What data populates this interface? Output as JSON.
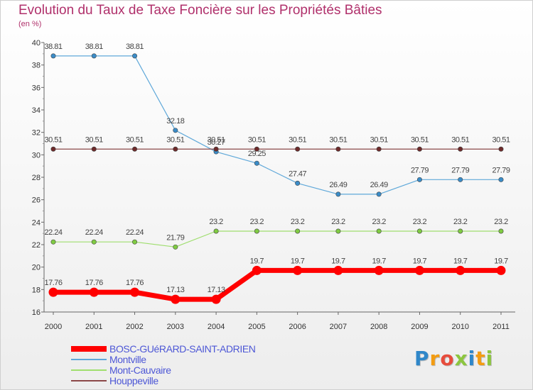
{
  "chart_data": {
    "type": "line",
    "title": "Evolution du Taux de Taxe Foncière sur les Propriétés Bâties",
    "subtitle": "(en %)",
    "xlabel": "",
    "ylabel": "",
    "ylim": [
      16,
      40
    ],
    "yticks": [
      16,
      18,
      20,
      22,
      24,
      26,
      28,
      30,
      32,
      34,
      36,
      38,
      40
    ],
    "x": [
      "2000",
      "2001",
      "2002",
      "2003",
      "2004",
      "2005",
      "2006",
      "2007",
      "2008",
      "2009",
      "2010",
      "2011"
    ],
    "series": [
      {
        "name": "BOSC-GUéRARD-SAINT-ADRIEN",
        "color": "#ff0000",
        "emphasis": true,
        "values": [
          17.76,
          17.76,
          17.76,
          17.13,
          17.13,
          19.7,
          19.7,
          19.7,
          19.7,
          19.7,
          19.7,
          19.7
        ],
        "labels": [
          "17.76",
          "17.76",
          "17.76",
          "17.13",
          "17.13",
          "19.7",
          "19.7",
          "19.7",
          "19.7",
          "19.7",
          "19.7",
          "19.7"
        ]
      },
      {
        "name": "Montville",
        "color": "#5fa8d9",
        "point_color": "#3a8cc8",
        "values": [
          38.81,
          38.81,
          38.81,
          32.18,
          30.27,
          29.25,
          27.47,
          26.49,
          26.49,
          27.79,
          27.79,
          27.79
        ],
        "labels": [
          "38.81",
          "38.81",
          "38.81",
          "32.18",
          "30.27",
          "29.25",
          "27.47",
          "26.49",
          "26.49",
          "27.79",
          "27.79",
          "27.79"
        ]
      },
      {
        "name": "Mont-Cauvaire",
        "color": "#9fde6e",
        "point_color": "#7fcb42",
        "values": [
          22.24,
          22.24,
          22.24,
          21.79,
          23.2,
          23.2,
          23.2,
          23.2,
          23.2,
          23.2,
          23.2,
          23.2
        ],
        "labels": [
          "22.24",
          "22.24",
          "22.24",
          "21.79",
          "23.2",
          "23.2",
          "23.2",
          "23.2",
          "23.2",
          "23.2",
          "23.2",
          "23.2"
        ]
      },
      {
        "name": "Houppeville",
        "color": "#8b4848",
        "point_color": "#6e2a2a",
        "values": [
          30.51,
          30.51,
          30.51,
          30.51,
          30.51,
          30.51,
          30.51,
          30.51,
          30.51,
          30.51,
          30.51,
          30.51
        ],
        "labels": [
          "30.51",
          "30.51",
          "30.51",
          "30.51",
          "30.51",
          "30.51",
          "30.51",
          "30.51",
          "30.51",
          "30.51",
          "30.51",
          "30.51"
        ]
      }
    ],
    "legend": "bottom-left",
    "grid": false
  },
  "logo": {
    "letters": [
      "P",
      "r",
      "o",
      "x",
      "i",
      "t",
      "i"
    ]
  }
}
